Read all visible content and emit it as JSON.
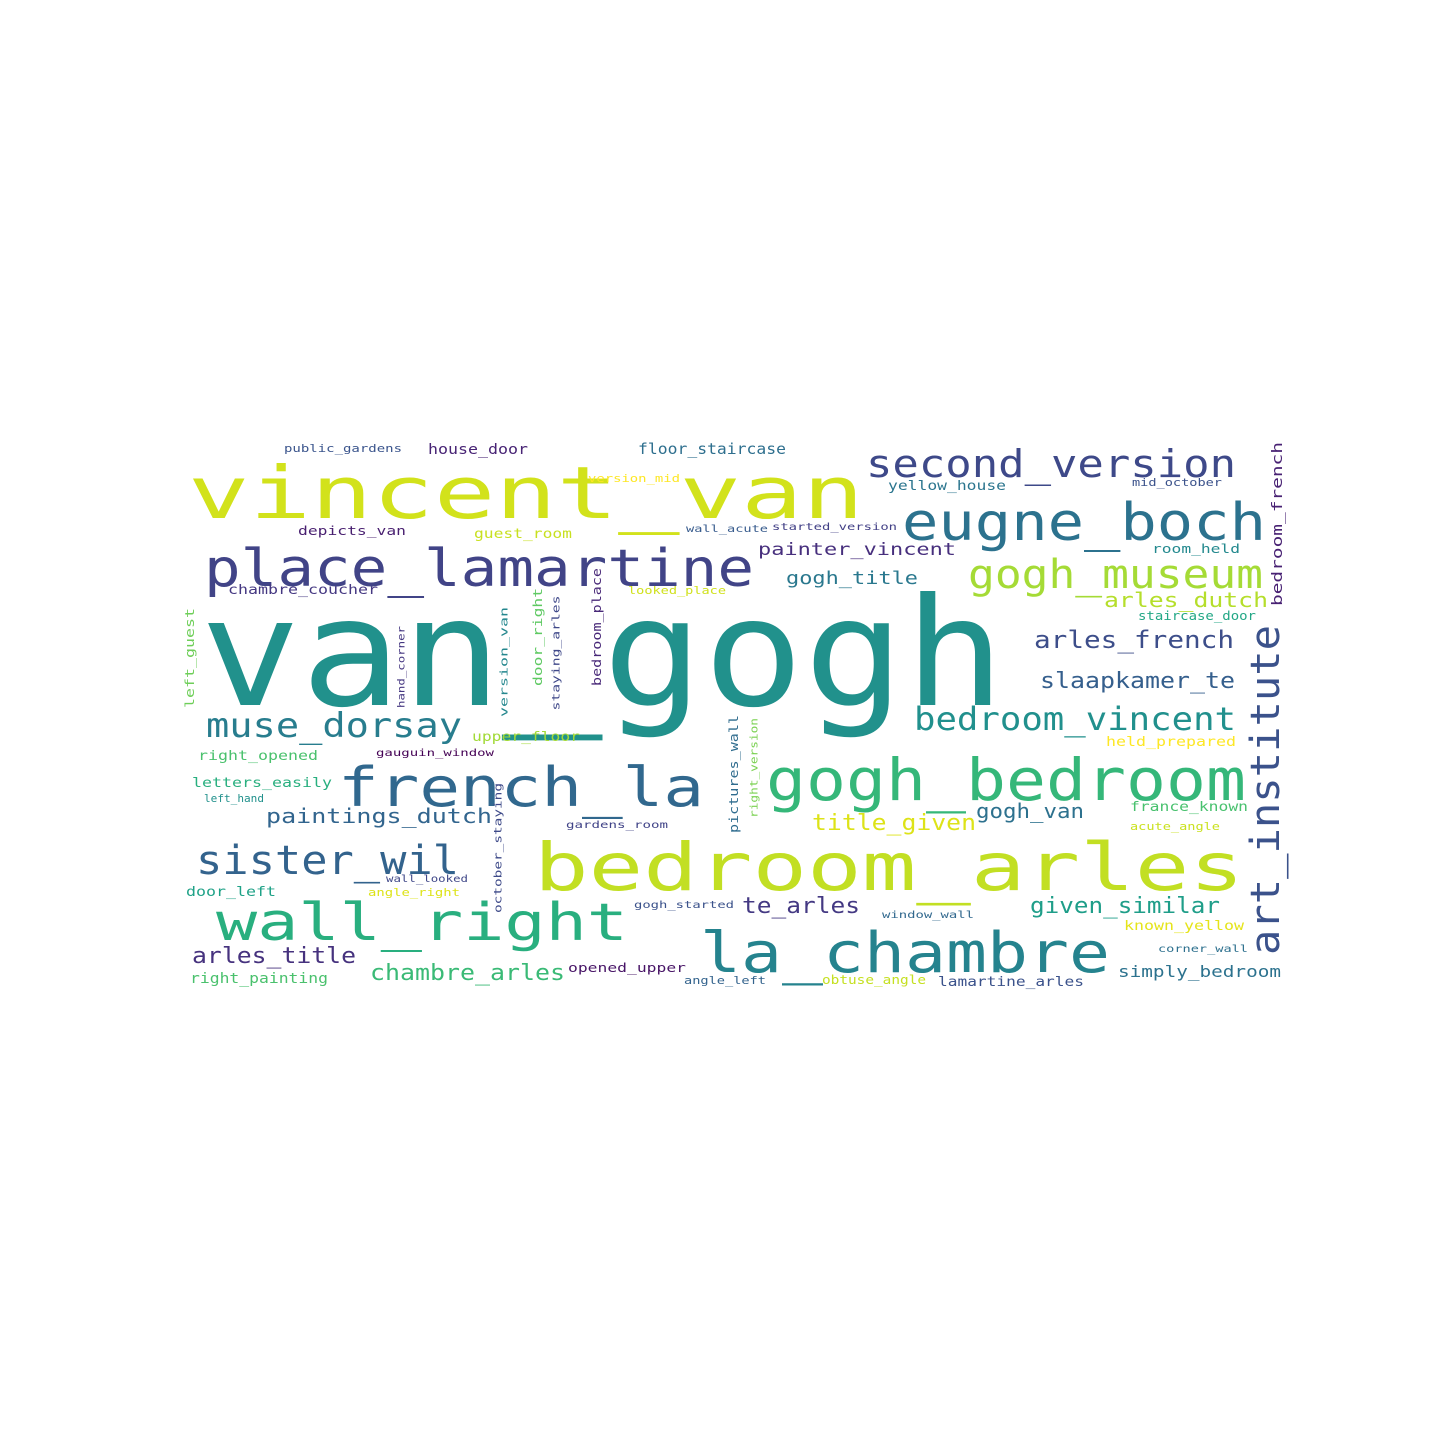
{
  "words": [
    {
      "text": "van_gogh",
      "color": "#21918c"
    },
    {
      "text": "vincent_van",
      "color": "#d2e21b"
    },
    {
      "text": "bedroom_arles",
      "color": "#c2df23"
    },
    {
      "text": "place_lamartine",
      "color": "#414487"
    },
    {
      "text": "french_la",
      "color": "#31688e"
    },
    {
      "text": "eugne_boch",
      "color": "#2c728e"
    },
    {
      "text": "second_version",
      "color": "#3e4989"
    },
    {
      "text": "gogh_bedroom",
      "color": "#35b779"
    },
    {
      "text": "gogh_museum",
      "color": "#a5db36"
    },
    {
      "text": "la_chambre",
      "color": "#25838e"
    },
    {
      "text": "wall_right",
      "color": "#29af7f"
    },
    {
      "text": "sister_wil",
      "color": "#33638d"
    },
    {
      "text": "art_institute",
      "color": "#3b528b"
    },
    {
      "text": "muse_dorsay",
      "color": "#287d8e"
    },
    {
      "text": "bedroom_vincent",
      "color": "#21908d"
    },
    {
      "text": "arles_french",
      "color": "#3d4e8a"
    },
    {
      "text": "slaapkamer_te",
      "color": "#355f8d"
    },
    {
      "text": "gogh_title",
      "color": "#2a788e"
    },
    {
      "text": "painter_vincent",
      "color": "#472f7d"
    },
    {
      "text": "arles_dutch",
      "color": "#b5de2b"
    },
    {
      "text": "paintings_dutch",
      "color": "#32658e"
    },
    {
      "text": "gogh_van",
      "color": "#2d718e"
    },
    {
      "text": "title_given",
      "color": "#dde318"
    },
    {
      "text": "te_arles",
      "color": "#443983"
    },
    {
      "text": "given_similar",
      "color": "#1f9e89"
    },
    {
      "text": "arles_title",
      "color": "#46327e"
    },
    {
      "text": "chambre_arles",
      "color": "#3aba76"
    },
    {
      "text": "simply_bedroom",
      "color": "#2c728e"
    },
    {
      "text": "floor_staircase",
      "color": "#2e6f8e"
    },
    {
      "text": "house_door",
      "color": "#482475"
    },
    {
      "text": "public_gardens",
      "color": "#3a548c"
    },
    {
      "text": "version_mid",
      "color": "#fde725"
    },
    {
      "text": "yellow_house",
      "color": "#2b758e"
    },
    {
      "text": "mid_october",
      "color": "#3b528b"
    },
    {
      "text": "bedroom_french",
      "color": "#482173"
    },
    {
      "text": "depicts_van",
      "color": "#481f70"
    },
    {
      "text": "guest_room",
      "color": "#c8e020"
    },
    {
      "text": "wall_acute",
      "color": "#375b8d"
    },
    {
      "text": "started_version",
      "color": "#424086"
    },
    {
      "text": "room_held",
      "color": "#23898e"
    },
    {
      "text": "chambre_coucher",
      "color": "#453882"
    },
    {
      "text": "looked_place",
      "color": "#d0e11c"
    },
    {
      "text": "staircase_door",
      "color": "#22a785"
    },
    {
      "text": "left_guest",
      "color": "#6ece58"
    },
    {
      "text": "hand_corner",
      "color": "#453781"
    },
    {
      "text": "version_van",
      "color": "#24878e"
    },
    {
      "text": "door_right",
      "color": "#5ec962"
    },
    {
      "text": "staying_arles",
      "color": "#3f4889"
    },
    {
      "text": "bedroom_place",
      "color": "#482878"
    },
    {
      "text": "upper_floor",
      "color": "#a2da37"
    },
    {
      "text": "right_opened",
      "color": "#4ac16d"
    },
    {
      "text": "gauguin_window",
      "color": "#440154"
    },
    {
      "text": "held_prepared",
      "color": "#fde725"
    },
    {
      "text": "pictures_wall",
      "color": "#2f6c8e"
    },
    {
      "text": "right_version",
      "color": "#7ad151"
    },
    {
      "text": "letters_easily",
      "color": "#29af7f"
    },
    {
      "text": "left_hand",
      "color": "#21918c"
    },
    {
      "text": "france_known",
      "color": "#48c16e"
    },
    {
      "text": "gardens_room",
      "color": "#404387"
    },
    {
      "text": "acute_angle",
      "color": "#cae11f"
    },
    {
      "text": "october_staying",
      "color": "#3e4a89"
    },
    {
      "text": "wall_looked",
      "color": "#3f4788"
    },
    {
      "text": "door_left",
      "color": "#1fa287"
    },
    {
      "text": "angle_right",
      "color": "#dde318"
    },
    {
      "text": "gogh_started",
      "color": "#3b528b"
    },
    {
      "text": "window_wall",
      "color": "#31688e"
    },
    {
      "text": "known_yellow",
      "color": "#e5e419"
    },
    {
      "text": "corner_wall",
      "color": "#2d708e"
    },
    {
      "text": "right_painting",
      "color": "#4ac16d"
    },
    {
      "text": "opened_upper",
      "color": "#481567"
    },
    {
      "text": "angle_left",
      "color": "#33638d"
    },
    {
      "text": "obtuse_angle",
      "color": "#c5e021"
    },
    {
      "text": "lamartine_arles",
      "color": "#3b528b"
    }
  ]
}
